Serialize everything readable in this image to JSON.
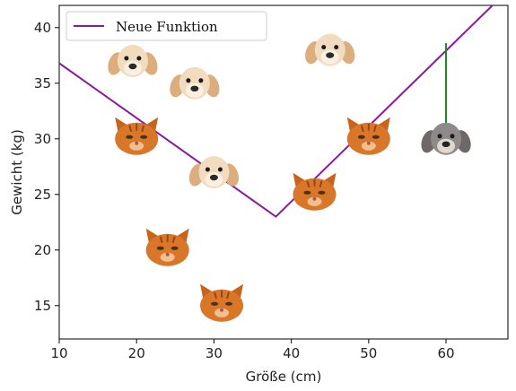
{
  "chart_data": {
    "type": "scatter",
    "xlabel": "Größe (cm)",
    "ylabel": "Gewicht (kg)",
    "xlim": [
      10,
      68
    ],
    "ylim": [
      12,
      42
    ],
    "xticks": [
      "10",
      "20",
      "30",
      "40",
      "50",
      "60"
    ],
    "yticks": [
      "15",
      "20",
      "25",
      "30",
      "35",
      "40"
    ],
    "grid": false,
    "legend_position": "top-left",
    "legend": [
      "Neue Funktion"
    ],
    "series": [
      {
        "name": "Neue Funktion",
        "type": "line",
        "color": "#8b1a9b",
        "x": [
          10,
          38,
          66
        ],
        "y": [
          36.8,
          23,
          42
        ]
      }
    ],
    "points": [
      {
        "kind": "dog",
        "x": 19.5,
        "y": 37,
        "icon": "dog-icon"
      },
      {
        "kind": "dog",
        "x": 45,
        "y": 38,
        "icon": "dog-icon"
      },
      {
        "kind": "dog",
        "x": 27.5,
        "y": 35,
        "icon": "dog-icon"
      },
      {
        "kind": "dog",
        "x": 30,
        "y": 27,
        "icon": "dog-icon"
      },
      {
        "kind": "cat",
        "x": 20,
        "y": 30,
        "icon": "cat-icon"
      },
      {
        "kind": "cat",
        "x": 50,
        "y": 30,
        "icon": "cat-icon"
      },
      {
        "kind": "cat",
        "x": 43,
        "y": 25,
        "icon": "cat-icon"
      },
      {
        "kind": "cat",
        "x": 24,
        "y": 20,
        "icon": "cat-icon"
      },
      {
        "kind": "cat",
        "x": 31,
        "y": 15,
        "icon": "cat-icon"
      },
      {
        "kind": "new-dog",
        "x": 60,
        "y": 30,
        "icon": "gray-dog-icon"
      }
    ],
    "residual": {
      "x": 60,
      "y_from": 30,
      "y_to": 38.6,
      "color": "#1a8a1a"
    }
  }
}
